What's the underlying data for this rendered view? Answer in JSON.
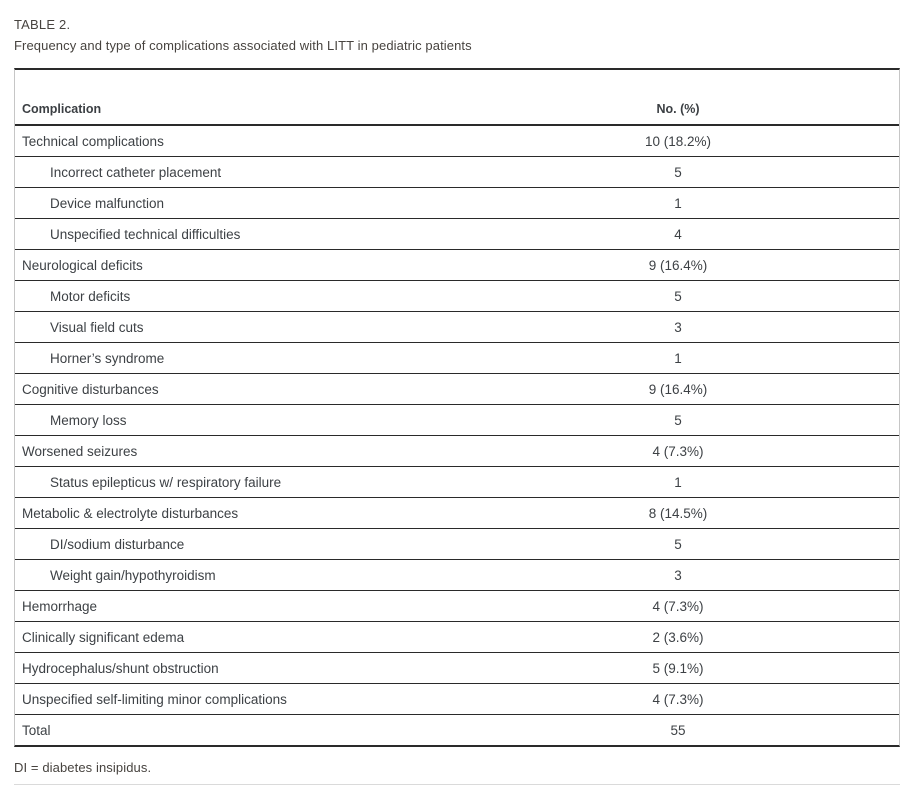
{
  "caption": {
    "label": "TABLE 2.",
    "title": "Frequency and type of complications associated with LITT in pediatric patients"
  },
  "table": {
    "columns": [
      "Complication",
      "No. (%)"
    ],
    "rows": [
      {
        "label": "Technical complications",
        "value": "10 (18.2%)",
        "indent": false
      },
      {
        "label": "Incorrect catheter placement",
        "value": "5",
        "indent": true
      },
      {
        "label": "Device malfunction",
        "value": "1",
        "indent": true
      },
      {
        "label": "Unspecified technical difficulties",
        "value": "4",
        "indent": true
      },
      {
        "label": "Neurological deficits",
        "value": "9 (16.4%)",
        "indent": false
      },
      {
        "label": "Motor deficits",
        "value": "5",
        "indent": true
      },
      {
        "label": "Visual field cuts",
        "value": "3",
        "indent": true
      },
      {
        "label": "Horner’s syndrome",
        "value": "1",
        "indent": true
      },
      {
        "label": "Cognitive disturbances",
        "value": "9 (16.4%)",
        "indent": false
      },
      {
        "label": "Memory loss",
        "value": "5",
        "indent": true
      },
      {
        "label": "Worsened seizures",
        "value": "4 (7.3%)",
        "indent": false
      },
      {
        "label": "Status epilepticus w/ respiratory failure",
        "value": "1",
        "indent": true
      },
      {
        "label": "Metabolic & electrolyte disturbances",
        "value": "8 (14.5%)",
        "indent": false
      },
      {
        "label": "DI/sodium disturbance",
        "value": "5",
        "indent": true
      },
      {
        "label": "Weight gain/hypothyroidism",
        "value": "3",
        "indent": true
      },
      {
        "label": "Hemorrhage",
        "value": "4 (7.3%)",
        "indent": false
      },
      {
        "label": "Clinically significant edema",
        "value": "2 (3.6%)",
        "indent": false
      },
      {
        "label": "Hydrocephalus/shunt obstruction",
        "value": "5 (9.1%)",
        "indent": false
      },
      {
        "label": "Unspecified self-limiting minor complications",
        "value": "4 (7.3%)",
        "indent": false
      },
      {
        "label": "Total",
        "value": "55",
        "indent": false
      }
    ]
  },
  "footnote": "DI = diabetes insipidus."
}
